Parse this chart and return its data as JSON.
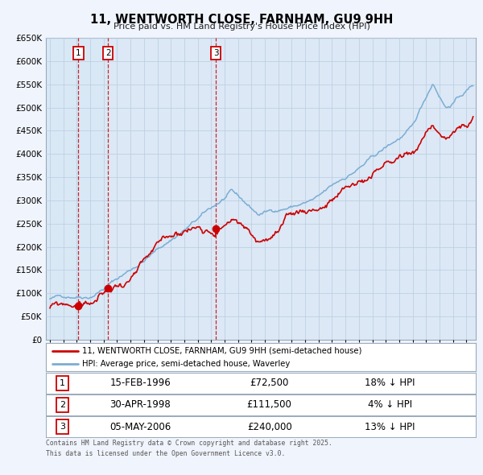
{
  "title": "11, WENTWORTH CLOSE, FARNHAM, GU9 9HH",
  "subtitle": "Price paid vs. HM Land Registry's House Price Index (HPI)",
  "legend_line1": "11, WENTWORTH CLOSE, FARNHAM, GU9 9HH (semi-detached house)",
  "legend_line2": "HPI: Average price, semi-detached house, Waverley",
  "red_color": "#cc0000",
  "blue_color": "#7aadd4",
  "shade_color": "#d8e8f5",
  "transactions": [
    {
      "label": "1",
      "date_num": 1996.12,
      "price": 72500,
      "note": "15-FEB-1996",
      "pct": "18% ↓ HPI"
    },
    {
      "label": "2",
      "date_num": 1998.33,
      "price": 111500,
      "note": "30-APR-1998",
      "pct": "4% ↓ HPI"
    },
    {
      "label": "3",
      "date_num": 2006.35,
      "price": 240000,
      "note": "05-MAY-2006",
      "pct": "13% ↓ HPI"
    }
  ],
  "footer_line1": "Contains HM Land Registry data © Crown copyright and database right 2025.",
  "footer_line2": "This data is licensed under the Open Government Licence v3.0.",
  "ylim": [
    0,
    650000
  ],
  "xlim_start": 1993.7,
  "xlim_end": 2025.7,
  "background_color": "#f0f4fc",
  "grid_color": "#b8cce0",
  "plot_bg": "#dce8f5"
}
